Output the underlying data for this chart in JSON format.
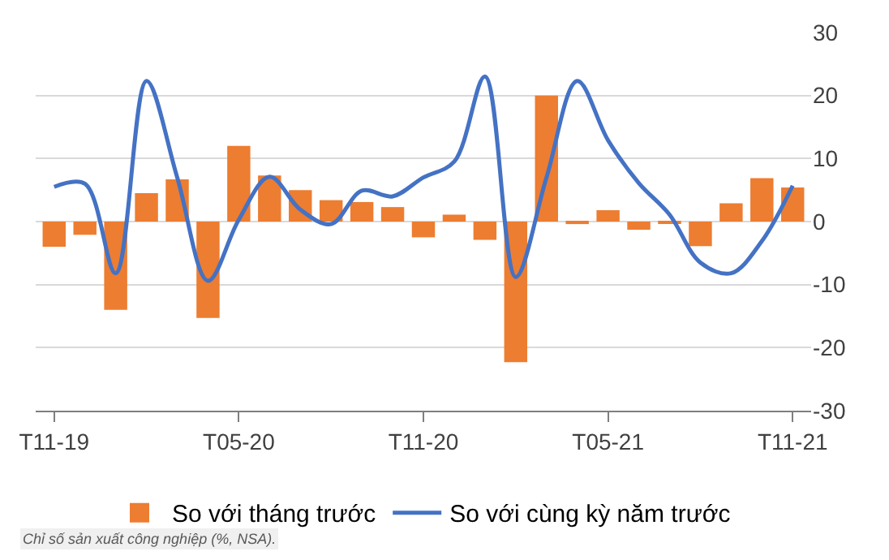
{
  "chart_data": {
    "type": "bar",
    "categories": [
      "T11-19",
      null,
      null,
      null,
      null,
      null,
      "T05-20",
      null,
      null,
      null,
      null,
      null,
      "T11-20",
      null,
      null,
      null,
      null,
      null,
      "T05-21",
      null,
      null,
      null,
      null,
      null,
      "T11-21"
    ],
    "series": [
      {
        "name": "So với tháng trước",
        "color": "#ed7d31",
        "values": [
          -4,
          -2.1,
          -14,
          4.5,
          6.7,
          -15.3,
          12,
          7.3,
          5,
          3.4,
          3.1,
          2.3,
          -2.5,
          1.1,
          -2.9,
          -22.3,
          20,
          -0.4,
          1.8,
          -1.3,
          -0.3,
          -3.9,
          2.9,
          6.9,
          5.4
        ]
      },
      {
        "name": "So với cùng kỳ năm trước",
        "type": "line",
        "color": "#4472c4",
        "values": [
          5.5,
          6,
          -8.2,
          22.3,
          7,
          -9.4,
          0.3,
          7.1,
          1.9,
          -0.4,
          4.9,
          4,
          7,
          9.5,
          23,
          -8.8,
          7,
          22.3,
          12.9,
          6.1,
          1.1,
          -6.5,
          -8.2,
          -3.1,
          5.7
        ]
      }
    ],
    "ylim": [
      -30,
      30
    ],
    "yticks": [
      -30,
      -20,
      -10,
      0,
      10,
      20,
      30
    ],
    "grid": "y",
    "legend": "bottom",
    "annotations": [
      "Chỉ số sản xuất công nghiệp (%, NSA)."
    ]
  }
}
